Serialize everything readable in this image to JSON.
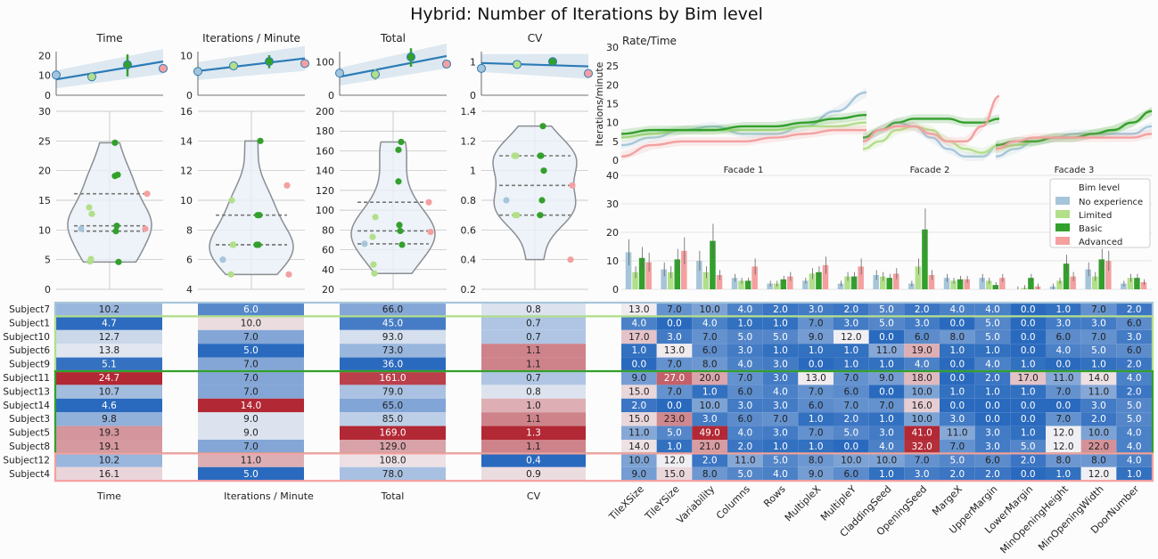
{
  "title": "Hybrid: Number of Iterations by Bim level",
  "colors": {
    "no_experience": "#a6c5da",
    "limited": "#b2df8a",
    "basic": "#33a02c",
    "advanced": "#f4a0a0",
    "regline": "#2c7bb6"
  },
  "legend": {
    "title": "Bim level",
    "items": [
      "No experience",
      "Limited",
      "Basic",
      "Advanced"
    ]
  },
  "chart_data": [
    {
      "type": "scatter",
      "panel": "Time summary",
      "title": "Time",
      "ylim": [
        0,
        22
      ],
      "yticks": [
        0,
        10,
        20
      ],
      "points": [
        {
          "group": "No experience",
          "y": 10.2
        },
        {
          "group": "Limited",
          "y": 9.3,
          "ci": [
            7.0,
            11.5
          ]
        },
        {
          "group": "Basic",
          "y": 15.4,
          "ci": [
            9.5,
            20.6
          ]
        },
        {
          "group": "Advanced",
          "y": 13.5
        }
      ],
      "regression": {
        "from": 8.0,
        "to": 17.0
      }
    },
    {
      "type": "scatter",
      "panel": "Iterations per minute summary",
      "title": "Iterations / Minute",
      "ylim": [
        0,
        11
      ],
      "yticks": [
        0,
        10
      ],
      "points": [
        {
          "group": "No experience",
          "y": 6.0
        },
        {
          "group": "Limited",
          "y": 7.4,
          "ci": [
            6.3,
            8.5
          ]
        },
        {
          "group": "Basic",
          "y": 8.5,
          "ci": [
            6.8,
            10.1
          ]
        },
        {
          "group": "Advanced",
          "y": 8.0
        }
      ],
      "regression": {
        "from": 6.1,
        "to": 9.3
      }
    },
    {
      "type": "scatter",
      "panel": "Total summary",
      "title": "Total",
      "ylim": [
        0,
        130
      ],
      "yticks": [
        0,
        100
      ],
      "points": [
        {
          "group": "No experience",
          "y": 66
        },
        {
          "group": "Limited",
          "y": 62,
          "ci": [
            45,
            78
          ]
        },
        {
          "group": "Basic",
          "y": 114,
          "ci": [
            85,
            140
          ]
        },
        {
          "group": "Advanced",
          "y": 93
        }
      ],
      "regression": {
        "from": 55,
        "to": 117
      }
    },
    {
      "type": "scatter",
      "panel": "CV summary",
      "title": "CV",
      "ylim": [
        0,
        1.3
      ],
      "yticks": [
        0,
        1
      ],
      "points": [
        {
          "group": "No experience",
          "y": 0.8
        },
        {
          "group": "Limited",
          "y": 0.92,
          "ci": [
            0.82,
            1.02
          ]
        },
        {
          "group": "Basic",
          "y": 1.0,
          "ci": [
            0.9,
            1.1
          ]
        },
        {
          "group": "Advanced",
          "y": 0.65
        }
      ],
      "regression": {
        "from": 0.96,
        "to": 0.86
      }
    },
    {
      "type": "violin",
      "panel": "Time violin",
      "ylim": [
        0,
        30
      ],
      "yticks": [
        0,
        5,
        10,
        15,
        20,
        25,
        30
      ],
      "values": [
        10.2,
        4.7,
        12.7,
        13.8,
        5.1,
        24.7,
        10.7,
        4.6,
        9.8,
        19.3,
        19.1,
        10.2,
        16.1
      ]
    },
    {
      "type": "violin",
      "panel": "Iterations per minute violin",
      "ylim": [
        4,
        16
      ],
      "yticks": [
        4,
        6,
        8,
        10,
        12,
        14,
        16
      ],
      "values": [
        6.0,
        10.0,
        7.0,
        5.0,
        7.0,
        7.0,
        7.0,
        14.0,
        9.0,
        9.0,
        7.0,
        11.0,
        5.0
      ]
    },
    {
      "type": "violin",
      "panel": "Total violin",
      "ylim": [
        20,
        200
      ],
      "yticks": [
        20,
        40,
        60,
        80,
        100,
        120,
        140,
        160,
        180,
        200
      ],
      "values": [
        66,
        45,
        93,
        73,
        36,
        161,
        79,
        65,
        85,
        169,
        129,
        108,
        78
      ]
    },
    {
      "type": "violin",
      "panel": "CV violin",
      "ylim": [
        0.2,
        1.4
      ],
      "yticks": [
        0.2,
        0.4,
        0.6,
        0.8,
        1.0,
        1.2,
        1.4
      ],
      "values": [
        0.8,
        0.7,
        0.7,
        1.1,
        1.1,
        0.7,
        0.8,
        1.0,
        1.1,
        1.3,
        1.1,
        0.4,
        0.9
      ]
    },
    {
      "type": "line",
      "panel": "Rate/Time",
      "title": "Rate/Time",
      "ylabel": "Iterations/minute",
      "ylim": [
        0,
        30
      ],
      "yticks": [
        0,
        5,
        10,
        15,
        20,
        25,
        30
      ],
      "facets": [
        "Facade 1",
        "Facade 2",
        "Facade 3"
      ]
    },
    {
      "type": "bar",
      "panel": "Parameter usage by Bim level",
      "ylim": [
        0,
        40
      ],
      "yticks": [
        0,
        10,
        20,
        30,
        40
      ],
      "categories": [
        "TileXSize",
        "TileYSize",
        "Variability",
        "Columns",
        "Rows",
        "MultipleX",
        "MultipleY",
        "CladdingSeed",
        "OpeningSeed",
        "MargeX",
        "UpperMargin",
        "LowerMargin",
        "MinOpeningHeight",
        "MinOpeningWidth",
        "DoorNumber"
      ],
      "series": [
        {
          "name": "No experience",
          "values": [
            13.0,
            7.0,
            10.0,
            4.0,
            2.0,
            3.0,
            2.0,
            5.0,
            2.0,
            4.0,
            4.0,
            0.0,
            1.0,
            7.0,
            2.0
          ]
        },
        {
          "name": "Limited",
          "values": [
            6.0,
            6.0,
            6.0,
            3.0,
            2.0,
            5.5,
            4.5,
            4.5,
            8.0,
            3.0,
            3.0,
            0.5,
            3.0,
            4.5,
            4.0
          ]
        },
        {
          "name": "Basic",
          "values": [
            11.0,
            10.5,
            17.0,
            3.0,
            3.5,
            6.0,
            4.5,
            4.0,
            21.0,
            3.5,
            1.5,
            4.0,
            9.0,
            10.5,
            4.0
          ]
        },
        {
          "name": "Advanced",
          "values": [
            9.5,
            13.5,
            5.0,
            8.0,
            4.5,
            8.5,
            8.0,
            5.5,
            5.0,
            3.5,
            4.0,
            1.0,
            4.5,
            10.0,
            2.5
          ]
        }
      ]
    },
    {
      "type": "heatmap",
      "panel": "Subject table",
      "rows": [
        "Subject7",
        "Subject1",
        "Subject10",
        "Subject6",
        "Subject9",
        "Subject11",
        "Subject13",
        "Subject14",
        "Subject3",
        "Subject5",
        "Subject8",
        "Subject12",
        "Subject4"
      ],
      "row_groups": [
        "No experience",
        "Limited",
        "Limited",
        "Limited",
        "Limited",
        "Basic",
        "Basic",
        "Basic",
        "Basic",
        "Basic",
        "Basic",
        "Advanced",
        "Advanced"
      ],
      "metric_labels": [
        "Time",
        "Iterations / Minute",
        "Total",
        "CV"
      ],
      "metrics": {
        "time": [
          10.2,
          4.7,
          12.7,
          13.8,
          5.1,
          24.7,
          10.7,
          4.6,
          9.8,
          19.3,
          19.1,
          10.2,
          16.1
        ],
        "rate": [
          6.0,
          10.0,
          7.0,
          5.0,
          7.0,
          7.0,
          7.0,
          14.0,
          9.0,
          9.0,
          7.0,
          11.0,
          5.0
        ],
        "total": [
          66.0,
          45.0,
          93.0,
          73.0,
          36.0,
          161.0,
          79.0,
          65.0,
          85.0,
          169.0,
          129.0,
          108.0,
          78.0
        ],
        "cv": [
          0.8,
          0.7,
          0.7,
          1.1,
          1.1,
          0.7,
          0.8,
          1.0,
          1.1,
          1.3,
          1.1,
          0.4,
          0.9
        ]
      },
      "params": [
        [
          13.0,
          7.0,
          10.0,
          4.0,
          2.0,
          3.0,
          2.0,
          5.0,
          2.0,
          4.0,
          4.0,
          0.0,
          1.0,
          7.0,
          2.0
        ],
        [
          4.0,
          0.0,
          4.0,
          1.0,
          1.0,
          7.0,
          3.0,
          5.0,
          3.0,
          0.0,
          5.0,
          0.0,
          3.0,
          3.0,
          6.0
        ],
        [
          17.0,
          3.0,
          7.0,
          5.0,
          5.0,
          9.0,
          12.0,
          0.0,
          6.0,
          8.0,
          5.0,
          0.0,
          6.0,
          7.0,
          3.0
        ],
        [
          1.0,
          13.0,
          6.0,
          3.0,
          1.0,
          1.0,
          1.0,
          11.0,
          19.0,
          1.0,
          1.0,
          0.0,
          4.0,
          5.0,
          6.0
        ],
        [
          0.0,
          7.0,
          8.0,
          4.0,
          3.0,
          0.0,
          1.0,
          1.0,
          4.0,
          0.0,
          4.0,
          1.0,
          0.0,
          1.0,
          2.0
        ],
        [
          9.0,
          27.0,
          20.0,
          7.0,
          3.0,
          13.0,
          7.0,
          9.0,
          18.0,
          0.0,
          2.0,
          17.0,
          11.0,
          14.0,
          4.0
        ],
        [
          15.0,
          7.0,
          1.0,
          6.0,
          4.0,
          7.0,
          6.0,
          0.0,
          10.0,
          1.0,
          1.0,
          1.0,
          7.0,
          11.0,
          2.0
        ],
        [
          2.0,
          0.0,
          10.0,
          3.0,
          3.0,
          6.0,
          7.0,
          7.0,
          16.0,
          0.0,
          0.0,
          0.0,
          0.0,
          3.0,
          5.0
        ],
        [
          15.0,
          23.0,
          3.0,
          6.0,
          7.0,
          1.0,
          2.0,
          1.0,
          10.0,
          3.0,
          0.0,
          0.0,
          7.0,
          2.0,
          5.0
        ],
        [
          11.0,
          5.0,
          49.0,
          4.0,
          3.0,
          7.0,
          5.0,
          3.0,
          41.0,
          11.0,
          3.0,
          1.0,
          12.0,
          10.0,
          4.0
        ],
        [
          14.0,
          1.0,
          21.0,
          2.0,
          1.0,
          1.0,
          0.0,
          4.0,
          32.0,
          7.0,
          3.0,
          5.0,
          12.0,
          22.0,
          4.0
        ],
        [
          10.0,
          12.0,
          2.0,
          11.0,
          5.0,
          8.0,
          10.0,
          10.0,
          7.0,
          5.0,
          6.0,
          2.0,
          8.0,
          8.0,
          4.0
        ],
        [
          9.0,
          15.0,
          8.0,
          5.0,
          4.0,
          9.0,
          6.0,
          1.0,
          3.0,
          2.0,
          2.0,
          0.0,
          1.0,
          12.0,
          1.0
        ]
      ]
    }
  ]
}
